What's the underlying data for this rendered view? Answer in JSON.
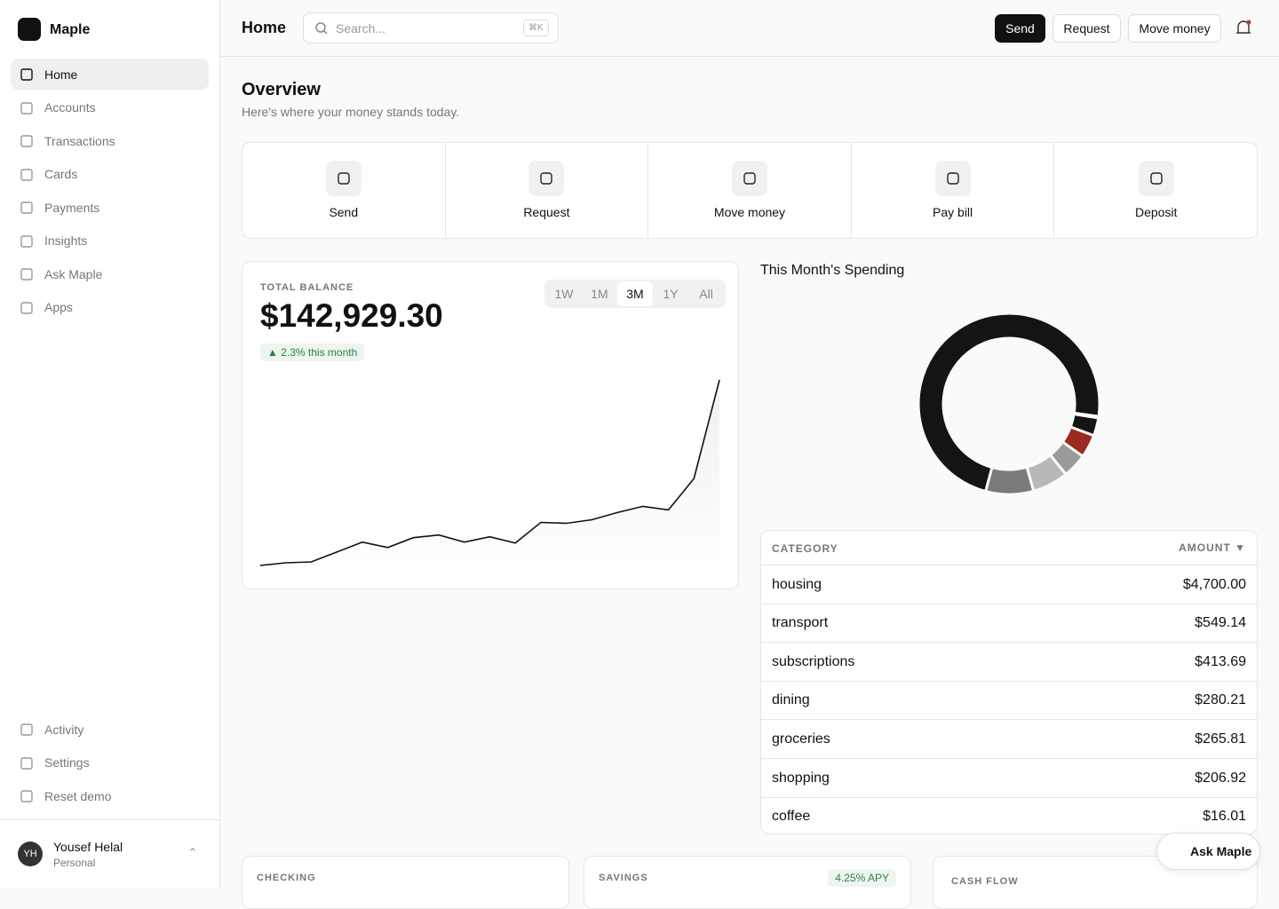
{
  "sidebar": {
    "brand": "Maple",
    "nav": [
      "Home",
      "Accounts",
      "Transactions",
      "Cards",
      "Payments",
      "Insights",
      "Ask Maple",
      "Apps"
    ],
    "footer_nav": [
      "Activity",
      "Settings",
      "Reset demo"
    ],
    "user": {
      "initials": "YH",
      "name": "Yousef Helal",
      "plan": "Personal"
    }
  },
  "header": {
    "title": "Home",
    "search_placeholder": "Search...",
    "shortcut": "⌘K",
    "buttons": [
      "Send",
      "Request",
      "Move money"
    ]
  },
  "overview": {
    "title": "Overview",
    "subtitle": "Here's where your money stands today."
  },
  "quick_actions": [
    "Send",
    "Request",
    "Move money",
    "Pay bill",
    "Deposit"
  ],
  "balance": {
    "label": "TOTAL BALANCE",
    "amount": "$142,929.30",
    "change": "▲ 2.3% this month",
    "ranges": [
      "1W",
      "1M",
      "3M",
      "1Y",
      "All"
    ],
    "selected_range": "3M"
  },
  "chart_data": [
    {
      "type": "line",
      "color": "#111111",
      "values": [
        90000,
        90767,
        91023,
        93835,
        96648,
        95114,
        97927,
        98694,
        96648,
        98182,
        96392,
        102273,
        102017,
        103040,
        105086,
        106876,
        105853,
        114803,
        142929.3
      ]
    },
    {
      "type": "pie",
      "title": "This Month's Spending",
      "categories": [
        "housing",
        "transport",
        "subscriptions",
        "dining",
        "groceries",
        "shopping",
        "coffee"
      ],
      "values": [
        4700,
        549.14,
        413.69,
        280.21,
        265.81,
        206.92,
        16.01
      ],
      "value_labels": [
        "$4,700.00",
        "$549.14",
        "$413.69",
        "$280.21",
        "$265.81",
        "$206.92",
        "$16.01"
      ],
      "colors": [
        "#141414",
        "#7a7a7a",
        "#b8b8b8",
        "#9a9a9a",
        "#9b2a22",
        "#141414",
        "#cfcfcf"
      ]
    }
  ],
  "spending_table": {
    "headers": [
      "CATEGORY",
      "AMOUNT ▼"
    ]
  },
  "accounts": {
    "checking": "CHECKING",
    "savings": "SAVINGS",
    "apy": "4.25% APY",
    "cash_flow": "CASH FLOW"
  },
  "assistant_button": "Ask Maple"
}
